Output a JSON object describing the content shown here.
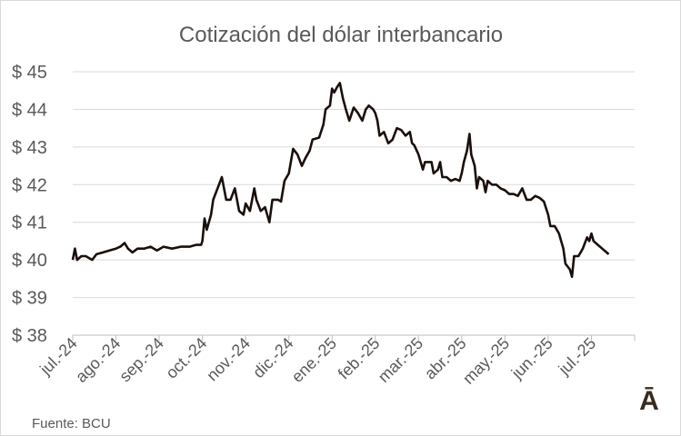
{
  "chart_data": {
    "type": "line",
    "title": "Cotización del dólar interbancario",
    "source": "Fuente: BCU",
    "logo_text": "Ā",
    "ylim": [
      38,
      45
    ],
    "y_ticks": [
      "$ 38",
      "$ 39",
      "$ 40",
      "$ 41",
      "$ 42",
      "$ 43",
      "$ 44",
      "$ 45"
    ],
    "x_ticks": [
      "jul.-24",
      "ago.-24",
      "sep.-24",
      "oct.-24",
      "nov.-24",
      "dic.-24",
      "ene.-25",
      "feb.-25",
      "mar.-25",
      "abr.-25",
      "may.-25",
      "jun.-25",
      "jul.-25"
    ],
    "grid": true,
    "line_color": "#1a0f0a",
    "series": [
      {
        "points": [
          [
            0.0,
            40.0
          ],
          [
            0.05,
            40.3
          ],
          [
            0.1,
            40.0
          ],
          [
            0.2,
            40.1
          ],
          [
            0.3,
            40.1
          ],
          [
            0.45,
            40.0
          ],
          [
            0.55,
            40.15
          ],
          [
            0.7,
            40.2
          ],
          [
            0.85,
            40.25
          ],
          [
            1.0,
            40.3
          ],
          [
            1.1,
            40.35
          ],
          [
            1.2,
            40.45
          ],
          [
            1.28,
            40.3
          ],
          [
            1.38,
            40.2
          ],
          [
            1.5,
            40.3
          ],
          [
            1.65,
            40.3
          ],
          [
            1.8,
            40.35
          ],
          [
            1.95,
            40.25
          ],
          [
            2.1,
            40.35
          ],
          [
            2.3,
            40.3
          ],
          [
            2.5,
            40.35
          ],
          [
            2.7,
            40.35
          ],
          [
            2.85,
            40.4
          ],
          [
            2.97,
            40.4
          ],
          [
            3.0,
            40.5
          ],
          [
            3.05,
            41.1
          ],
          [
            3.1,
            40.8
          ],
          [
            3.2,
            41.2
          ],
          [
            3.25,
            41.6
          ],
          [
            3.35,
            41.9
          ],
          [
            3.45,
            42.2
          ],
          [
            3.55,
            41.6
          ],
          [
            3.65,
            41.6
          ],
          [
            3.75,
            41.9
          ],
          [
            3.85,
            41.3
          ],
          [
            3.95,
            41.2
          ],
          [
            4.0,
            41.5
          ],
          [
            4.1,
            41.3
          ],
          [
            4.2,
            41.9
          ],
          [
            4.25,
            41.6
          ],
          [
            4.35,
            41.3
          ],
          [
            4.45,
            41.4
          ],
          [
            4.55,
            41.0
          ],
          [
            4.62,
            41.6
          ],
          [
            4.75,
            41.6
          ],
          [
            4.82,
            41.55
          ],
          [
            4.9,
            42.1
          ],
          [
            5.0,
            42.3
          ],
          [
            5.1,
            42.95
          ],
          [
            5.2,
            42.8
          ],
          [
            5.3,
            42.5
          ],
          [
            5.38,
            42.7
          ],
          [
            5.48,
            42.9
          ],
          [
            5.55,
            43.2
          ],
          [
            5.7,
            43.25
          ],
          [
            5.8,
            43.6
          ],
          [
            5.85,
            44.0
          ],
          [
            5.95,
            44.1
          ],
          [
            6.0,
            44.55
          ],
          [
            6.05,
            44.45
          ],
          [
            6.12,
            44.6
          ],
          [
            6.18,
            44.7
          ],
          [
            6.25,
            44.3
          ],
          [
            6.32,
            44.0
          ],
          [
            6.4,
            43.7
          ],
          [
            6.5,
            44.05
          ],
          [
            6.6,
            43.9
          ],
          [
            6.7,
            43.7
          ],
          [
            6.78,
            44.0
          ],
          [
            6.85,
            44.1
          ],
          [
            6.95,
            44.0
          ],
          [
            7.0,
            43.9
          ],
          [
            7.05,
            43.7
          ],
          [
            7.1,
            43.3
          ],
          [
            7.2,
            43.4
          ],
          [
            7.3,
            43.1
          ],
          [
            7.4,
            43.2
          ],
          [
            7.5,
            43.5
          ],
          [
            7.6,
            43.45
          ],
          [
            7.7,
            43.3
          ],
          [
            7.8,
            43.4
          ],
          [
            7.85,
            43.1
          ],
          [
            7.9,
            43.05
          ],
          [
            8.0,
            42.8
          ],
          [
            8.1,
            42.4
          ],
          [
            8.15,
            42.6
          ],
          [
            8.3,
            42.6
          ],
          [
            8.35,
            42.3
          ],
          [
            8.45,
            42.4
          ],
          [
            8.5,
            42.6
          ],
          [
            8.55,
            42.2
          ],
          [
            8.65,
            42.2
          ],
          [
            8.75,
            42.1
          ],
          [
            8.85,
            42.15
          ],
          [
            8.95,
            42.1
          ],
          [
            9.0,
            42.3
          ],
          [
            9.05,
            42.6
          ],
          [
            9.12,
            42.9
          ],
          [
            9.18,
            43.35
          ],
          [
            9.22,
            42.8
          ],
          [
            9.3,
            42.5
          ],
          [
            9.35,
            41.9
          ],
          [
            9.4,
            42.2
          ],
          [
            9.5,
            42.1
          ],
          [
            9.55,
            41.8
          ],
          [
            9.6,
            42.1
          ],
          [
            9.7,
            42.0
          ],
          [
            9.8,
            42.0
          ],
          [
            9.9,
            41.9
          ],
          [
            10.0,
            41.85
          ],
          [
            10.1,
            41.75
          ],
          [
            10.2,
            41.75
          ],
          [
            10.3,
            41.7
          ],
          [
            10.4,
            41.9
          ],
          [
            10.5,
            41.6
          ],
          [
            10.6,
            41.6
          ],
          [
            10.7,
            41.7
          ],
          [
            10.8,
            41.65
          ],
          [
            10.9,
            41.55
          ],
          [
            11.0,
            41.2
          ],
          [
            11.05,
            40.9
          ],
          [
            11.15,
            40.9
          ],
          [
            11.25,
            40.7
          ],
          [
            11.35,
            40.3
          ],
          [
            11.4,
            39.9
          ],
          [
            11.5,
            39.75
          ],
          [
            11.55,
            39.55
          ],
          [
            11.6,
            40.1
          ],
          [
            11.7,
            40.1
          ],
          [
            11.8,
            40.3
          ],
          [
            11.9,
            40.6
          ],
          [
            11.95,
            40.5
          ],
          [
            12.0,
            40.7
          ],
          [
            12.05,
            40.5
          ],
          [
            12.15,
            40.4
          ],
          [
            12.25,
            40.3
          ],
          [
            12.4,
            40.15
          ]
        ]
      }
    ]
  }
}
